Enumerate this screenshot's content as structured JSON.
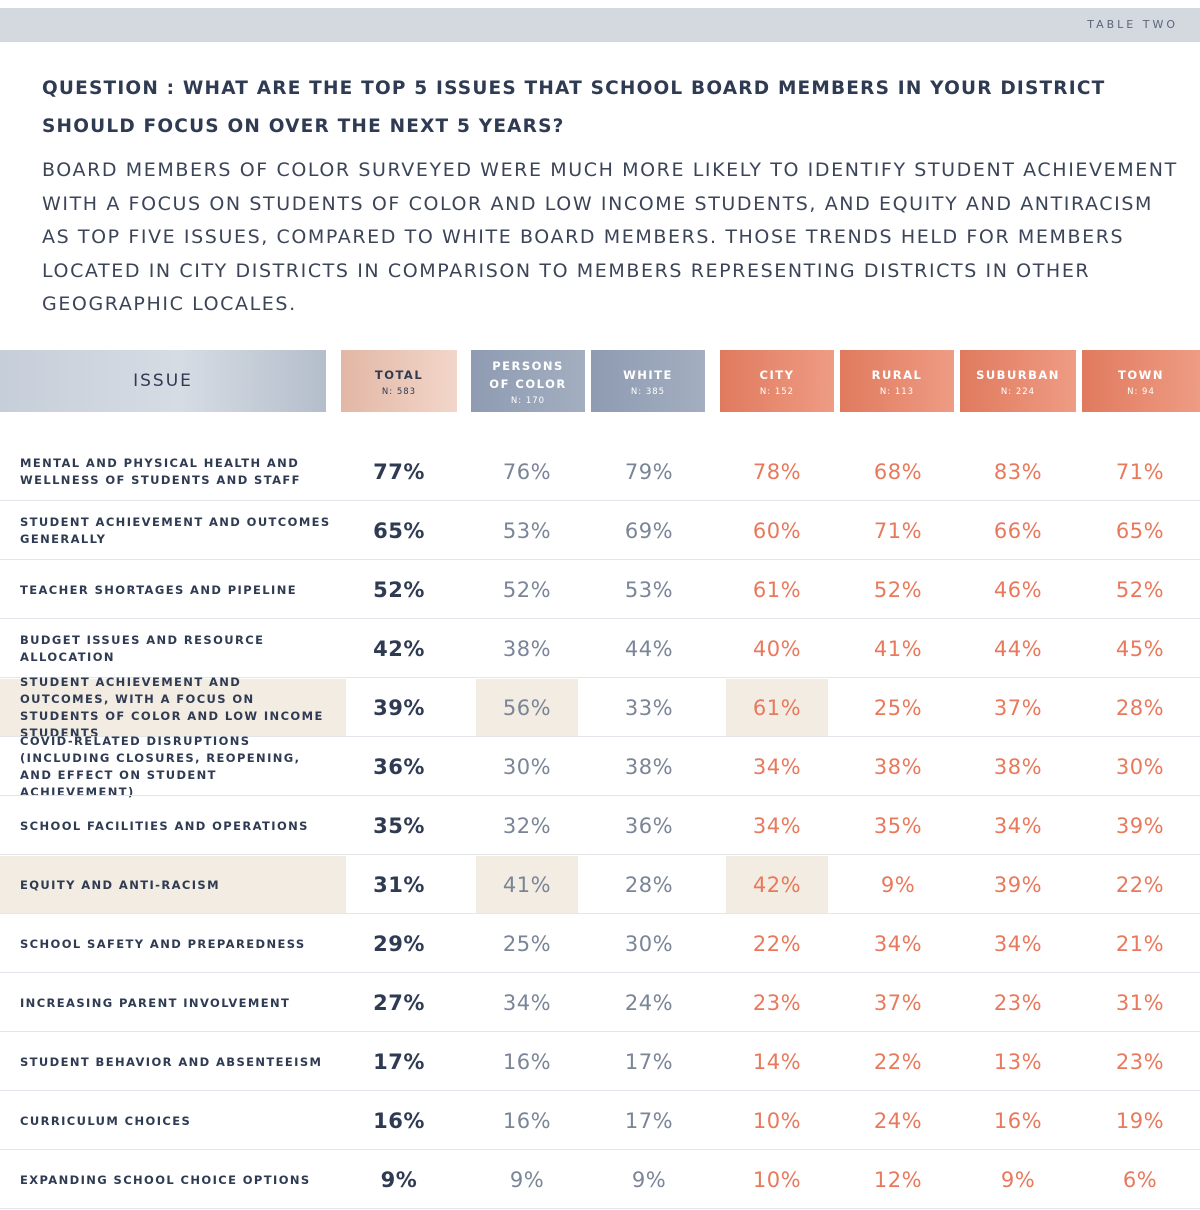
{
  "table_label": "TABLE TWO",
  "question": "QUESTION : WHAT ARE THE TOP 5 ISSUES THAT SCHOOL BOARD MEMBERS IN YOUR DISTRICT SHOULD FOCUS ON OVER THE NEXT 5 YEARS?",
  "summary": "BOARD MEMBERS OF COLOR SURVEYED WERE MUCH MORE LIKELY TO IDENTIFY STUDENT ACHIEVEMENT WITH A FOCUS ON STUDENTS OF COLOR AND LOW INCOME STUDENTS, AND EQUITY AND ANTIRACISM AS TOP FIVE ISSUES, COMPARED TO WHITE BOARD MEMBERS. THOSE TRENDS HELD FOR MEMBERS LOCATED IN CITY DISTRICTS IN COMPARISON TO MEMBERS REPRESENTING DISTRICTS IN OTHER GEOGRAPHIC LOCALES.",
  "colors": {
    "navy": "#2f3b52",
    "grey_value": "#7a8597",
    "orange_value": "#e8795c",
    "highlight": "#f2ece2"
  },
  "header": {
    "issue": "ISSUE",
    "columns": [
      {
        "label": "TOTAL",
        "n": "N: 583"
      },
      {
        "label": "PERSONS OF COLOR",
        "n": "N: 170"
      },
      {
        "label": "WHITE",
        "n": "N: 385"
      },
      {
        "label": "CITY",
        "n": "N: 152"
      },
      {
        "label": "RURAL",
        "n": "N: 113"
      },
      {
        "label": "SUBURBAN",
        "n": "N: 224"
      },
      {
        "label": "TOWN",
        "n": "N: 94"
      }
    ]
  },
  "rows": [
    {
      "issue": "MENTAL AND PHYSICAL HEALTH AND WELLNESS OF STUDENTS AND STAFF",
      "values": [
        "77%",
        "76%",
        "79%",
        "78%",
        "68%",
        "83%",
        "71%"
      ]
    },
    {
      "issue": "STUDENT ACHIEVEMENT AND OUTCOMES GENERALLY",
      "values": [
        "65%",
        "53%",
        "69%",
        "60%",
        "71%",
        "66%",
        "65%"
      ]
    },
    {
      "issue": "TEACHER SHORTAGES AND PIPELINE",
      "values": [
        "52%",
        "52%",
        "53%",
        "61%",
        "52%",
        "46%",
        "52%"
      ]
    },
    {
      "issue": "BUDGET ISSUES AND RESOURCE ALLOCATION",
      "values": [
        "42%",
        "38%",
        "44%",
        "40%",
        "41%",
        "44%",
        "45%"
      ]
    },
    {
      "issue": "STUDENT ACHIEVEMENT AND OUTCOMES, WITH A FOCUS ON STUDENTS OF COLOR AND LOW INCOME STUDENTS",
      "values": [
        "39%",
        "56%",
        "33%",
        "61%",
        "25%",
        "37%",
        "28%"
      ],
      "highlight": true
    },
    {
      "issue": "COVID-RELATED DISRUPTIONS (INCLUDING CLOSURES, REOPENING, AND EFFECT ON STUDENT ACHIEVEMENT)",
      "values": [
        "36%",
        "30%",
        "38%",
        "34%",
        "38%",
        "38%",
        "30%"
      ]
    },
    {
      "issue": "SCHOOL FACILITIES AND OPERATIONS",
      "values": [
        "35%",
        "32%",
        "36%",
        "34%",
        "35%",
        "34%",
        "39%"
      ]
    },
    {
      "issue": "EQUITY AND ANTI-RACISM",
      "values": [
        "31%",
        "41%",
        "28%",
        "42%",
        "9%",
        "39%",
        "22%"
      ],
      "highlight": true
    },
    {
      "issue": "SCHOOL SAFETY AND PREPAREDNESS",
      "values": [
        "29%",
        "25%",
        "30%",
        "22%",
        "34%",
        "34%",
        "21%"
      ]
    },
    {
      "issue": "INCREASING PARENT INVOLVEMENT",
      "values": [
        "27%",
        "34%",
        "24%",
        "23%",
        "37%",
        "23%",
        "31%"
      ]
    },
    {
      "issue": "STUDENT BEHAVIOR AND ABSENTEEISM",
      "values": [
        "17%",
        "16%",
        "17%",
        "14%",
        "22%",
        "13%",
        "23%"
      ]
    },
    {
      "issue": "CURRICULUM CHOICES",
      "values": [
        "16%",
        "16%",
        "17%",
        "10%",
        "24%",
        "16%",
        "19%"
      ]
    },
    {
      "issue": "EXPANDING SCHOOL CHOICE OPTIONS",
      "values": [
        "9%",
        "9%",
        "9%",
        "10%",
        "12%",
        "9%",
        "6%"
      ]
    }
  ]
}
